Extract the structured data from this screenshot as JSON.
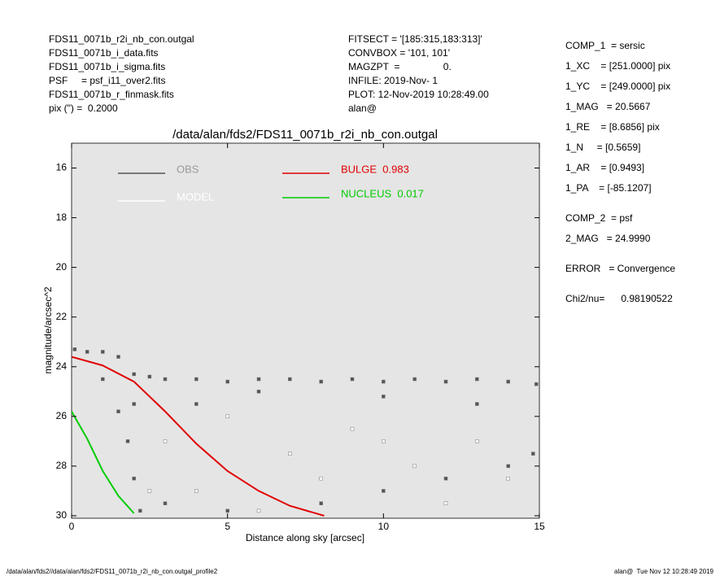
{
  "header": {
    "left": [
      "FDS11_0071b_r2i_nb_con.outgal",
      "FDS11_0071b_i_data.fits",
      "FDS11_0071b_i_sigma.fits",
      "PSF     = psf_i11_over2.fits",
      "FDS11_0071b_r_finmask.fits",
      "pix (\") =  0.2000"
    ],
    "center": [
      "FITSECT = '[185:315,183:313]'",
      "CONVBOX = '101, 101'",
      "MAGZPT  =                0.",
      "INFILE: 2019-Nov- 1",
      "PLOT: 12-Nov-2019 10:28:49.00",
      "alan@"
    ]
  },
  "params": [
    "COMP_1  = sersic",
    "1_XC    = [251.0000] pix",
    "1_YC    = [249.0000] pix",
    "1_MAG   = 20.5667",
    "1_RE    = [8.6856] pix",
    "1_N     = [0.5659]",
    "1_AR    = [0.9493]",
    "1_PA    = [-85.1207]",
    "COMP_2  = psf",
    "2_MAG   = 24.9990",
    "ERROR   = Convergence",
    "Chi2/nu=      0.98190522"
  ],
  "footer": {
    "left": "/data/alan/fds2//data/alan/fds2/FDS11_0071b_r2i_nb_con.outgal_profile2",
    "right": "alan@  Tue Nov 12 10:28:49 2019"
  },
  "chart_data": {
    "type": "profile",
    "title": "/data/alan/fds2/FDS11_0071b_r2i_nb_con.outgal",
    "x_label": "Distance along sky [arcsec]",
    "y_label": "magnitude/arcsec^2",
    "xlim": [
      0,
      15
    ],
    "xticks": [
      0,
      5,
      10,
      15
    ],
    "ylim": [
      15,
      30.1
    ],
    "yticks": [
      16,
      18,
      20,
      22,
      24,
      26,
      28,
      30
    ],
    "y_reversed": true,
    "background": "#e5e5e5",
    "series": [
      {
        "name": "OBS",
        "kind": "scatter",
        "color": "#555555",
        "x": [
          0.1,
          0.5,
          1,
          1.5,
          2,
          2.5,
          3,
          4,
          5,
          6,
          7,
          8,
          9,
          10,
          11,
          12,
          13,
          14,
          14.9,
          1,
          1.5,
          1.8,
          2,
          2.2,
          3,
          5,
          8,
          10,
          12,
          14,
          14.8,
          2,
          4,
          6,
          10,
          13
        ],
        "values": [
          23.3,
          23.4,
          23.4,
          23.6,
          24.3,
          24.4,
          24.5,
          24.5,
          24.6,
          24.5,
          24.5,
          24.6,
          24.5,
          24.6,
          24.5,
          24.6,
          24.5,
          24.6,
          24.7,
          24.5,
          25.8,
          27,
          28.5,
          29.8,
          29.5,
          29.8,
          29.5,
          29,
          28.5,
          28,
          27.5,
          25.5,
          25.5,
          25,
          25.2,
          25.5
        ]
      },
      {
        "name": "MODEL",
        "kind": "scatter",
        "color": "#ffffff",
        "x": [
          2.5,
          3,
          4,
          5,
          6,
          7,
          8,
          9,
          10,
          11,
          12,
          13,
          14
        ],
        "values": [
          29,
          27,
          29,
          26,
          29.8,
          27.5,
          28.5,
          26.5,
          27,
          28,
          29.5,
          27,
          28.5
        ]
      },
      {
        "name": "BULGE  0.983",
        "kind": "line",
        "color": "#e00000",
        "x": [
          0,
          1,
          2,
          3,
          4,
          5,
          6,
          7,
          8.1
        ],
        "values": [
          23.6,
          23.95,
          24.6,
          25.8,
          27.1,
          28.2,
          29,
          29.6,
          30
        ]
      },
      {
        "name": "NUCLEUS  0.017",
        "kind": "line",
        "color": "#00cc00",
        "x": [
          0,
          0.5,
          1,
          1.5,
          2
        ],
        "values": [
          25.8,
          26.9,
          28.2,
          29.2,
          29.9
        ]
      }
    ]
  }
}
